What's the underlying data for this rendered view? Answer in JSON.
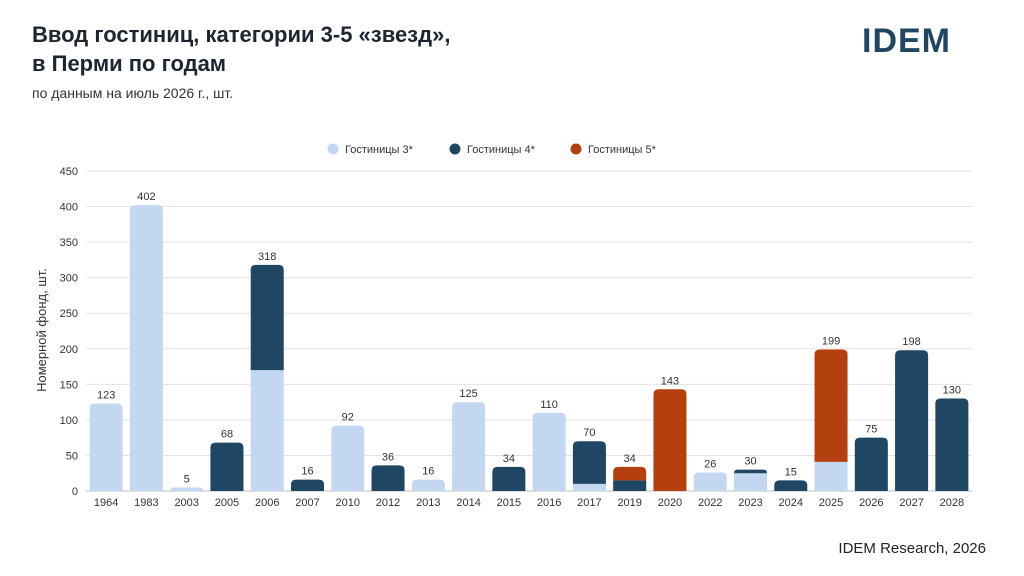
{
  "header": {
    "title_line1": "Ввод гостиниц, категории 3-5 «звезд»,",
    "title_line2": "в Перми по годам",
    "subtitle": "по данным на июль 2026 г., шт.",
    "logo": "IDEM"
  },
  "footer": {
    "source": "IDEM Research, 2026"
  },
  "chart_data": {
    "type": "bar",
    "stacked": true,
    "ylabel": "Номерной фонд, шт.",
    "ylim": [
      0,
      450
    ],
    "yticks": [
      0,
      50,
      100,
      150,
      200,
      250,
      300,
      350,
      400,
      450
    ],
    "grid": true,
    "legend_position": "top-center",
    "categories": [
      "1964",
      "1983",
      "2003",
      "2005",
      "2006",
      "2007",
      "2010",
      "2012",
      "2013",
      "2014",
      "2015",
      "2016",
      "2017",
      "2019",
      "2020",
      "2022",
      "2023",
      "2024",
      "2025",
      "2026",
      "2027",
      "2028"
    ],
    "series": [
      {
        "name": "Гостиницы 3*",
        "color": "#c3d8f0",
        "values": [
          123,
          402,
          5,
          0,
          170,
          0,
          92,
          0,
          16,
          125,
          0,
          110,
          10,
          0,
          0,
          26,
          25,
          0,
          41,
          0,
          0,
          0
        ]
      },
      {
        "name": "Гостиницы 4*",
        "color": "#1f4662",
        "values": [
          0,
          0,
          0,
          68,
          148,
          16,
          0,
          36,
          0,
          0,
          34,
          0,
          60,
          15,
          0,
          0,
          5,
          15,
          0,
          75,
          198,
          130
        ]
      },
      {
        "name": "Гостиницы 5*",
        "color": "#b5400f",
        "values": [
          0,
          0,
          0,
          0,
          0,
          0,
          0,
          0,
          0,
          0,
          0,
          0,
          0,
          19,
          143,
          0,
          0,
          0,
          158,
          0,
          0,
          0
        ]
      }
    ],
    "totals": [
      123,
      402,
      5,
      68,
      318,
      16,
      92,
      36,
      16,
      125,
      34,
      110,
      70,
      34,
      143,
      26,
      30,
      15,
      199,
      75,
      198,
      130
    ]
  }
}
